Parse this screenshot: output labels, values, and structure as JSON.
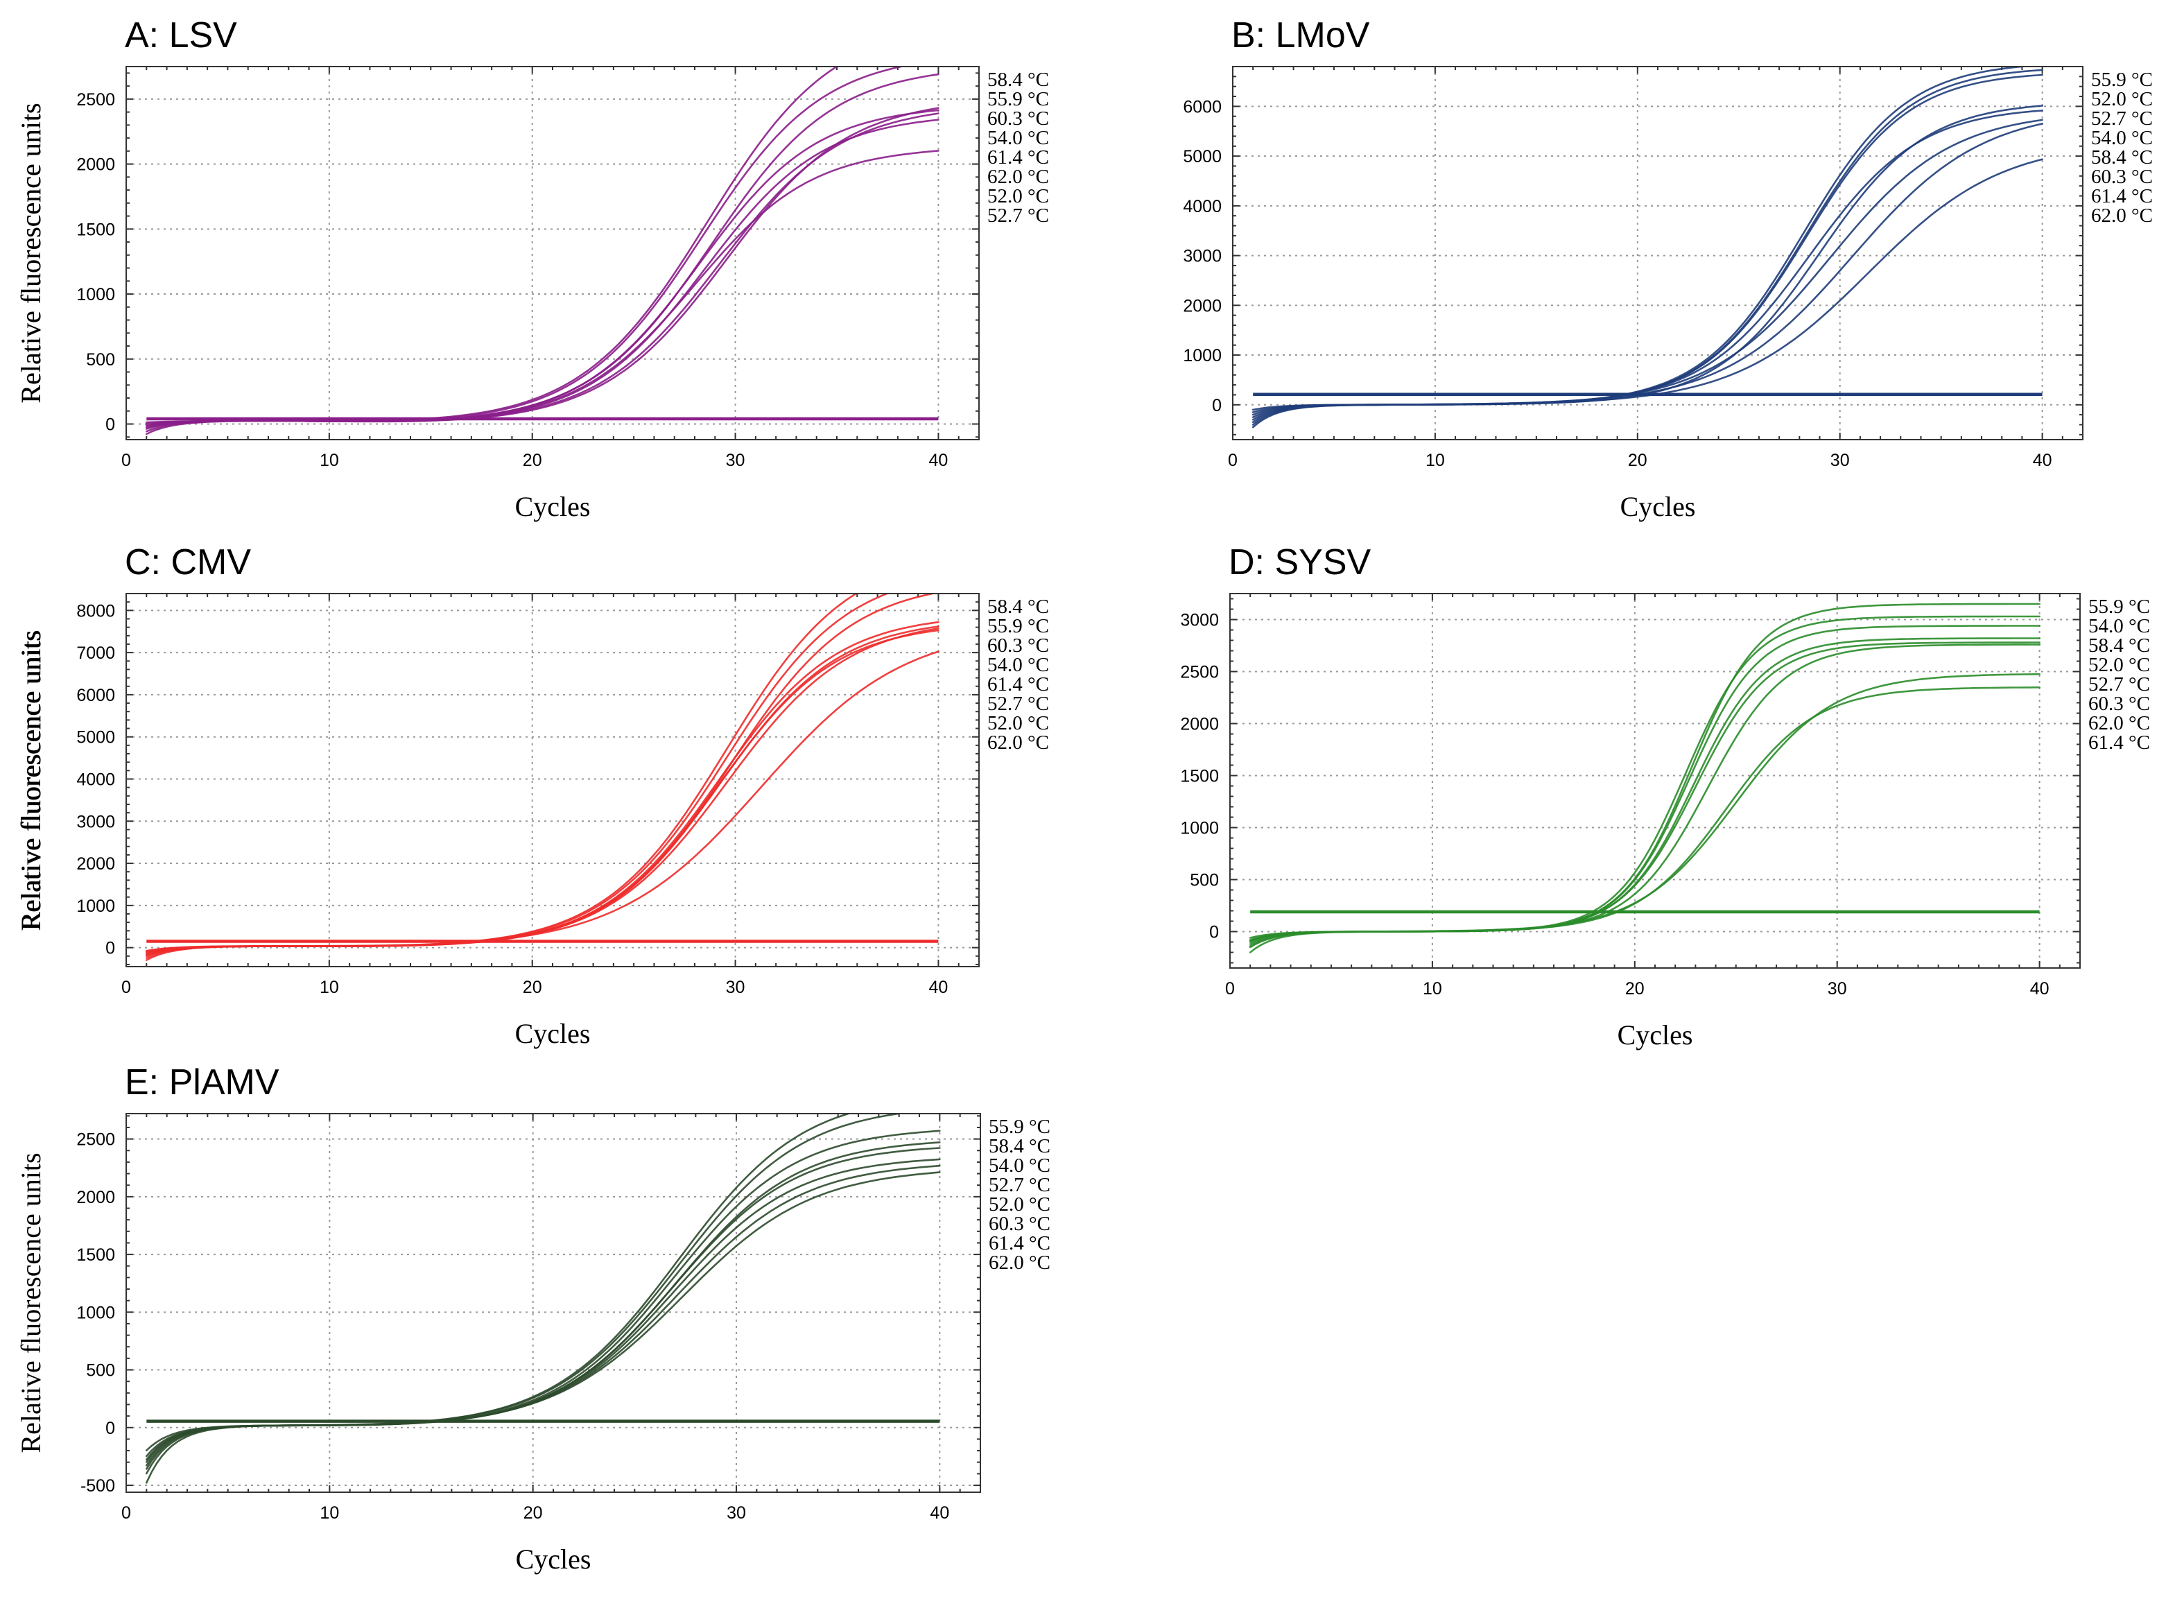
{
  "chart_data": [
    {
      "type": "line",
      "title": "A: LSV",
      "xlabel": "Cycles",
      "ylabel": "Relative fluorescence units",
      "xlim": [
        0,
        42
      ],
      "ylim": [
        -120,
        2750
      ],
      "xticks": [
        0,
        10,
        20,
        30,
        40
      ],
      "yticks": [
        0,
        500,
        1000,
        1500,
        2000,
        2500
      ],
      "color": "#8a1e8a",
      "grid": true,
      "legend_position": "right",
      "threshold": 40,
      "baseline": 15,
      "series": [
        {
          "name": "58.4 °C",
          "plateau": 3100,
          "midpoint": 28.7,
          "slope": 3.1,
          "start": -60
        },
        {
          "name": "55.9 °C",
          "plateau": 2850,
          "midpoint": 28.4,
          "slope": 3.0,
          "start": -20
        },
        {
          "name": "60.3 °C",
          "plateau": 2750,
          "midpoint": 28.9,
          "slope": 3.0,
          "start": -40
        },
        {
          "name": "54.0 °C",
          "plateau": 2450,
          "midpoint": 28.3,
          "slope": 2.9,
          "start": 0
        },
        {
          "name": "61.4 °C",
          "plateau": 2380,
          "midpoint": 28.6,
          "slope": 2.9,
          "start": -30
        },
        {
          "name": "62.0 °C",
          "plateau": 2130,
          "midpoint": 28.1,
          "slope": 2.9,
          "start": -80
        },
        {
          "name": "52.0 °C",
          "plateau": 2500,
          "midpoint": 29.6,
          "slope": 3.0,
          "start": -10
        },
        {
          "name": "52.7 °C",
          "plateau": 2450,
          "midpoint": 29.3,
          "slope": 3.0,
          "start": 10
        }
      ]
    },
    {
      "type": "line",
      "title": "B: LMoV",
      "xlabel": "Cycles",
      "ylabel": "Relative fluorescence units",
      "xlim": [
        0,
        42
      ],
      "ylim": [
        -700,
        6800
      ],
      "xticks": [
        0,
        10,
        20,
        30,
        40
      ],
      "yticks": [
        0,
        1000,
        2000,
        3000,
        4000,
        5000,
        6000
      ],
      "color": "#1f3d7a",
      "grid": true,
      "legend_position": "right",
      "threshold": 210,
      "baseline": 0,
      "series": [
        {
          "name": "55.9 °C",
          "plateau": 6900,
          "midpoint": 28.2,
          "slope": 2.55,
          "start": -450
        },
        {
          "name": "52.0 °C",
          "plateau": 6800,
          "midpoint": 28.3,
          "slope": 2.55,
          "start": -300
        },
        {
          "name": "52.7 °C",
          "plateau": 6700,
          "midpoint": 28.3,
          "slope": 2.55,
          "start": -200
        },
        {
          "name": "54.0 °C",
          "plateau": 6000,
          "midpoint": 28.5,
          "slope": 2.7,
          "start": -350
        },
        {
          "name": "58.4 °C",
          "plateau": 5900,
          "midpoint": 29.5,
          "slope": 3.0,
          "start": -250
        },
        {
          "name": "60.3 °C",
          "plateau": 5950,
          "midpoint": 30.6,
          "slope": 3.2,
          "start": -150
        },
        {
          "name": "61.4 °C",
          "plateau": 6100,
          "midpoint": 29.0,
          "slope": 2.6,
          "start": -400
        },
        {
          "name": "62.0 °C",
          "plateau": 5300,
          "midpoint": 31.4,
          "slope": 3.3,
          "start": -100
        }
      ]
    },
    {
      "type": "line",
      "title": "C: CMV",
      "xlabel": "Cycles",
      "ylabel": "Relative fluorescence units",
      "xlim": [
        0,
        42
      ],
      "ylim": [
        -450,
        8400
      ],
      "xticks": [
        0,
        10,
        20,
        30,
        40
      ],
      "yticks": [
        0,
        1000,
        2000,
        3000,
        4000,
        5000,
        6000,
        7000,
        8000
      ],
      "color": "#ee2b2b",
      "grid": true,
      "legend_position": "right",
      "threshold": 150,
      "baseline": 20,
      "series": [
        {
          "name": "58.4 °C",
          "plateau": 9400,
          "midpoint": 29.6,
          "slope": 3.0,
          "start": -300
        },
        {
          "name": "55.9 °C",
          "plateau": 9000,
          "midpoint": 29.6,
          "slope": 3.0,
          "start": -250
        },
        {
          "name": "60.3 °C",
          "plateau": 8700,
          "midpoint": 29.8,
          "slope": 3.0,
          "start": -200
        },
        {
          "name": "54.0 °C",
          "plateau": 7900,
          "midpoint": 29.2,
          "slope": 2.9,
          "start": -150
        },
        {
          "name": "61.4 °C",
          "plateau": 7800,
          "midpoint": 29.3,
          "slope": 2.9,
          "start": -180
        },
        {
          "name": "52.7 °C",
          "plateau": 7700,
          "midpoint": 29.2,
          "slope": 2.9,
          "start": -120
        },
        {
          "name": "52.0 °C",
          "plateau": 7800,
          "midpoint": 29.6,
          "slope": 3.0,
          "start": -100
        },
        {
          "name": "62.0 °C",
          "plateau": 7600,
          "midpoint": 31.3,
          "slope": 3.5,
          "start": -80
        }
      ]
    },
    {
      "type": "line",
      "title": "D: SYSV",
      "xlabel": "Cycles",
      "ylabel": "Relative fluorescence units",
      "xlim": [
        0,
        42
      ],
      "ylim": [
        -350,
        3250
      ],
      "xticks": [
        0,
        10,
        20,
        30,
        40
      ],
      "yticks": [
        0,
        500,
        1000,
        1500,
        2000,
        2500,
        3000
      ],
      "color": "#2a8c2a",
      "grid": true,
      "legend_position": "right",
      "threshold": 190,
      "baseline": 0,
      "series": [
        {
          "name": "55.9 °C",
          "plateau": 3150,
          "midpoint": 22.8,
          "slope": 1.7,
          "start": -120
        },
        {
          "name": "54.0 °C",
          "plateau": 3030,
          "midpoint": 22.5,
          "slope": 1.7,
          "start": -80
        },
        {
          "name": "58.4 °C",
          "plateau": 2940,
          "midpoint": 22.7,
          "slope": 1.7,
          "start": -150
        },
        {
          "name": "52.0 °C",
          "plateau": 2820,
          "midpoint": 22.9,
          "slope": 1.75,
          "start": -60
        },
        {
          "name": "52.7 °C",
          "plateau": 2780,
          "midpoint": 23.0,
          "slope": 1.8,
          "start": -100
        },
        {
          "name": "60.3 °C",
          "plateau": 2760,
          "midpoint": 23.6,
          "slope": 1.9,
          "start": -200
        },
        {
          "name": "62.0 °C",
          "plateau": 2480,
          "midpoint": 25.0,
          "slope": 2.4,
          "start": -90
        },
        {
          "name": "61.4 °C",
          "plateau": 2350,
          "midpoint": 24.5,
          "slope": 2.2,
          "start": -140
        }
      ]
    },
    {
      "type": "line",
      "title": "E: PlAMV",
      "xlabel": "Cycles",
      "ylabel": "Relative fluorescence units",
      "xlim": [
        0,
        42
      ],
      "ylim": [
        -560,
        2720
      ],
      "xticks": [
        0,
        10,
        20,
        30,
        40
      ],
      "yticks": [
        -500,
        0,
        500,
        1000,
        1500,
        2000,
        2500
      ],
      "color": "#2c4a2c",
      "grid": true,
      "legend_position": "right",
      "threshold": 55,
      "baseline": 10,
      "series": [
        {
          "name": "55.9 °C",
          "plateau": 2900,
          "midpoint": 27.2,
          "slope": 3.1,
          "start": -480
        },
        {
          "name": "58.4 °C",
          "plateau": 2800,
          "midpoint": 27.2,
          "slope": 3.1,
          "start": -400
        },
        {
          "name": "54.0 °C",
          "plateau": 2600,
          "midpoint": 27.0,
          "slope": 3.0,
          "start": -360
        },
        {
          "name": "52.7 °C",
          "plateau": 2500,
          "midpoint": 27.1,
          "slope": 3.0,
          "start": -300
        },
        {
          "name": "52.0 °C",
          "plateau": 2450,
          "midpoint": 27.0,
          "slope": 3.0,
          "start": -250
        },
        {
          "name": "60.3 °C",
          "plateau": 2350,
          "midpoint": 27.0,
          "slope": 3.0,
          "start": -330
        },
        {
          "name": "61.4 °C",
          "plateau": 2300,
          "midpoint": 27.2,
          "slope": 3.1,
          "start": -200
        },
        {
          "name": "62.0 °C",
          "plateau": 2250,
          "midpoint": 27.4,
          "slope": 3.2,
          "start": -280
        }
      ]
    }
  ]
}
